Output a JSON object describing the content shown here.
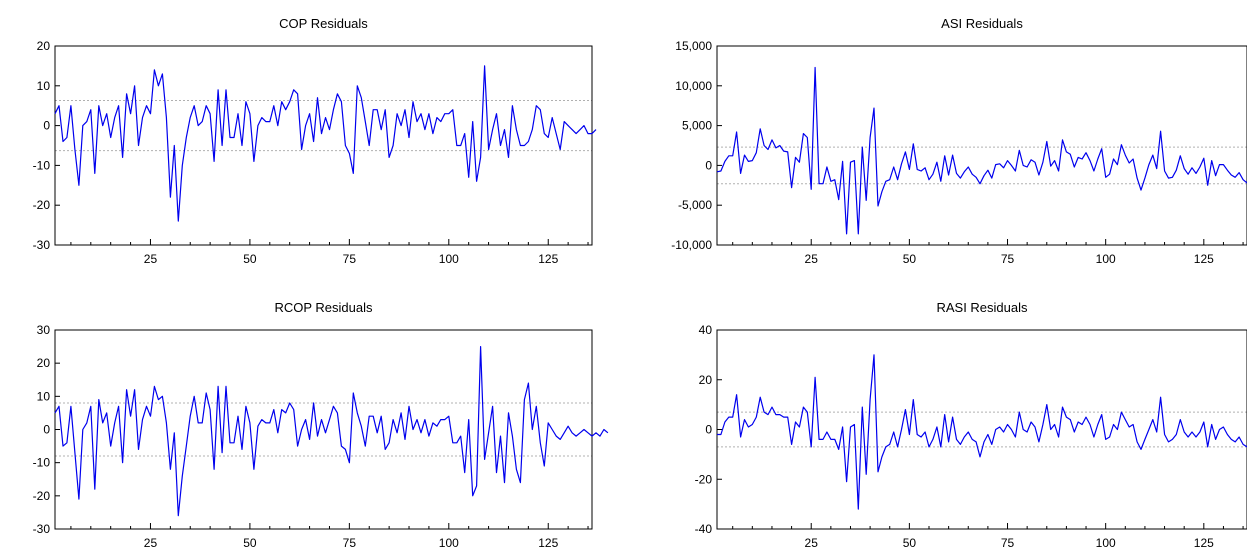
{
  "chart_data": [
    {
      "type": "line",
      "title": "COP Residuals",
      "xlim": [
        1,
        136
      ],
      "xticks": [
        25,
        50,
        75,
        100,
        125
      ],
      "ylim": [
        -30,
        20
      ],
      "yticks": [
        20,
        10,
        0,
        -10,
        -20,
        -30
      ],
      "ytick_labels": [
        "20",
        "10",
        "0",
        "-10",
        "-20",
        "-30"
      ],
      "bands": [
        6.3,
        -6.3
      ],
      "color": "#0000ee",
      "series": [
        {
          "values": [
            3,
            5,
            -4,
            -3,
            5,
            -6,
            -15,
            0,
            1,
            4,
            -12,
            5,
            0,
            3,
            -3,
            2,
            5,
            -8,
            8,
            3,
            10,
            -5,
            2,
            5,
            3,
            14,
            10,
            13,
            2,
            -18,
            -5,
            -24,
            -10,
            -3,
            2,
            5,
            0,
            1,
            5,
            3,
            -9,
            9,
            -5,
            9,
            -3,
            -3,
            3,
            -5,
            6,
            3,
            -9,
            0,
            2,
            1,
            1,
            5,
            0,
            6,
            4,
            6,
            9,
            8,
            -6,
            0,
            3,
            -4,
            7,
            -2,
            2,
            -1,
            4,
            8,
            6,
            -5,
            -7,
            -12,
            10,
            7,
            1,
            -5,
            4,
            4,
            -1,
            4,
            -8,
            -5,
            3,
            0,
            4,
            -3,
            6,
            1,
            3,
            -1,
            3,
            -2,
            2,
            1,
            3,
            3,
            4,
            -5,
            -5,
            -2,
            -13,
            1,
            -14,
            -8,
            15,
            -6,
            -1,
            3,
            -5,
            -1,
            -8,
            5,
            -1,
            -5,
            -5,
            -4,
            -1,
            5,
            4,
            -2,
            -3,
            2,
            -2,
            -6,
            1,
            0,
            -1,
            -2,
            -1,
            0,
            -2,
            -2,
            -1
          ]
        }
      ]
    },
    {
      "type": "line",
      "title": "ASI Residuals",
      "xlim": [
        1,
        136
      ],
      "xticks": [
        25,
        50,
        75,
        100,
        125
      ],
      "ylim": [
        -10000,
        15000
      ],
      "yticks": [
        15000,
        10000,
        5000,
        0,
        -5000,
        -10000
      ],
      "ytick_labels": [
        "15,000",
        "10,000",
        "5,000",
        "0",
        "-5,000",
        "-10,000"
      ],
      "bands": [
        2300,
        -2300
      ],
      "color": "#0000ee",
      "series": [
        {
          "values": [
            -800,
            -700,
            500,
            1200,
            1200,
            4200,
            -1000,
            1300,
            500,
            600,
            1600,
            4600,
            2500,
            2000,
            3200,
            2200,
            2500,
            1800,
            1700,
            -2800,
            1000,
            400,
            4000,
            3500,
            -3000,
            12300,
            -2300,
            -2300,
            -200,
            -2000,
            -1800,
            -4300,
            500,
            -8600,
            400,
            600,
            -8600,
            2300,
            -4400,
            3500,
            7200,
            -5100,
            -3300,
            -2000,
            -1800,
            -200,
            -1800,
            200,
            1700,
            -500,
            2700,
            -500,
            -700,
            -300,
            -1800,
            -1100,
            400,
            -2000,
            1200,
            -1200,
            1300,
            -1000,
            -1600,
            -800,
            -200,
            -1100,
            -1500,
            -2300,
            -1300,
            -600,
            -1600,
            100,
            200,
            -300,
            600,
            0,
            -700,
            1900,
            0,
            -200,
            700,
            400,
            -1200,
            400,
            3000,
            -100,
            600,
            -700,
            3200,
            1700,
            1400,
            -200,
            1000,
            800,
            1600,
            600,
            -700,
            800,
            2100,
            -1500,
            -1100,
            800,
            100,
            2600,
            1300,
            300,
            800,
            -1600,
            -3100,
            -1600,
            100,
            1300,
            -400,
            4300,
            -700,
            -1600,
            -1500,
            -600,
            1200,
            -400,
            -1100,
            -300,
            -1000,
            -200,
            900,
            -2500,
            600,
            -1300,
            100,
            100,
            -600,
            -1200,
            -1500,
            -900,
            -1800,
            -2200,
            -1000,
            -1600
          ]
        }
      ]
    },
    {
      "type": "line",
      "title": "RCOP Residuals",
      "xlim": [
        1,
        136
      ],
      "xticks": [
        25,
        50,
        75,
        100,
        125
      ],
      "ylim": [
        -30,
        30
      ],
      "yticks": [
        30,
        20,
        10,
        0,
        -10,
        -20,
        -30
      ],
      "ytick_labels": [
        "30",
        "20",
        "10",
        "0",
        "-10",
        "-20",
        "-30"
      ],
      "bands": [
        8,
        -8
      ],
      "color": "#0000ee",
      "series": [
        {
          "values": [
            5,
            7,
            -5,
            -4,
            7,
            -7,
            -21,
            0,
            2,
            7,
            -18,
            9,
            2,
            5,
            -5,
            2,
            7,
            -10,
            12,
            4,
            12,
            -6,
            3,
            7,
            4,
            13,
            9,
            10,
            2,
            -12,
            -1,
            -26,
            -14,
            -5,
            4,
            10,
            2,
            2,
            11,
            6,
            -12,
            13,
            -7,
            13,
            -4,
            -4,
            4,
            -6,
            7,
            2,
            -12,
            1,
            3,
            2,
            2,
            6,
            -1,
            6,
            5,
            8,
            6,
            -5,
            0,
            3,
            -3,
            8,
            -2,
            3,
            -1,
            3,
            7,
            5,
            -5,
            -6,
            -10,
            11,
            5,
            1,
            -5,
            4,
            4,
            -1,
            4,
            -6,
            -4,
            3,
            -1,
            5,
            -3,
            7,
            0,
            3,
            -1,
            3,
            -2,
            2,
            1,
            3,
            3,
            4,
            -4,
            -4,
            -2,
            -13,
            3,
            -20,
            -17,
            25,
            -9,
            -1,
            7,
            -13,
            -2,
            -16,
            5,
            -2,
            -12,
            -16,
            9,
            14,
            0,
            7,
            -4,
            -11,
            2,
            0,
            -2,
            -3,
            -1,
            1,
            -1,
            -2,
            -1,
            0,
            -1,
            -2,
            -1,
            -2,
            0,
            -1
          ]
        }
      ]
    },
    {
      "type": "line",
      "title": "RASI Residuals",
      "xlim": [
        1,
        136
      ],
      "xticks": [
        25,
        50,
        75,
        100,
        125
      ],
      "ylim": [
        -40,
        40
      ],
      "yticks": [
        40,
        20,
        0,
        -20,
        -40
      ],
      "ytick_labels": [
        "40",
        "20",
        "0",
        "-20",
        "-40"
      ],
      "bands": [
        7,
        -7
      ],
      "color": "#0000ee",
      "series": [
        {
          "values": [
            -2,
            -2,
            3,
            5,
            5,
            14,
            -3,
            4,
            1,
            2,
            5,
            13,
            7,
            6,
            9,
            6,
            6,
            5,
            5,
            -6,
            3,
            1,
            9,
            7,
            -7,
            21,
            -4,
            -4,
            -1,
            -4,
            -4,
            -8,
            1,
            -21,
            1,
            2,
            -32,
            9,
            -18,
            12,
            30,
            -17,
            -11,
            -7,
            -6,
            -1,
            -7,
            0,
            8,
            -2,
            12,
            -2,
            -3,
            -1,
            -7,
            -4,
            1,
            -7,
            6,
            -5,
            5,
            -4,
            -6,
            -3,
            -1,
            -4,
            -5,
            -11,
            -5,
            -2,
            -6,
            0,
            1,
            -1,
            2,
            0,
            -3,
            7,
            0,
            -1,
            3,
            1,
            -5,
            2,
            10,
            0,
            2,
            -3,
            9,
            5,
            4,
            -1,
            3,
            2,
            5,
            2,
            -3,
            2,
            6,
            -4,
            -3,
            2,
            0,
            7,
            4,
            1,
            2,
            -5,
            -8,
            -4,
            0,
            4,
            -1,
            13,
            -2,
            -5,
            -4,
            -2,
            4,
            -1,
            -3,
            -1,
            -3,
            -1,
            3,
            -7,
            2,
            -4,
            0,
            1,
            -2,
            -4,
            -5,
            -3,
            -6,
            -7,
            -3,
            -5
          ]
        }
      ]
    }
  ]
}
